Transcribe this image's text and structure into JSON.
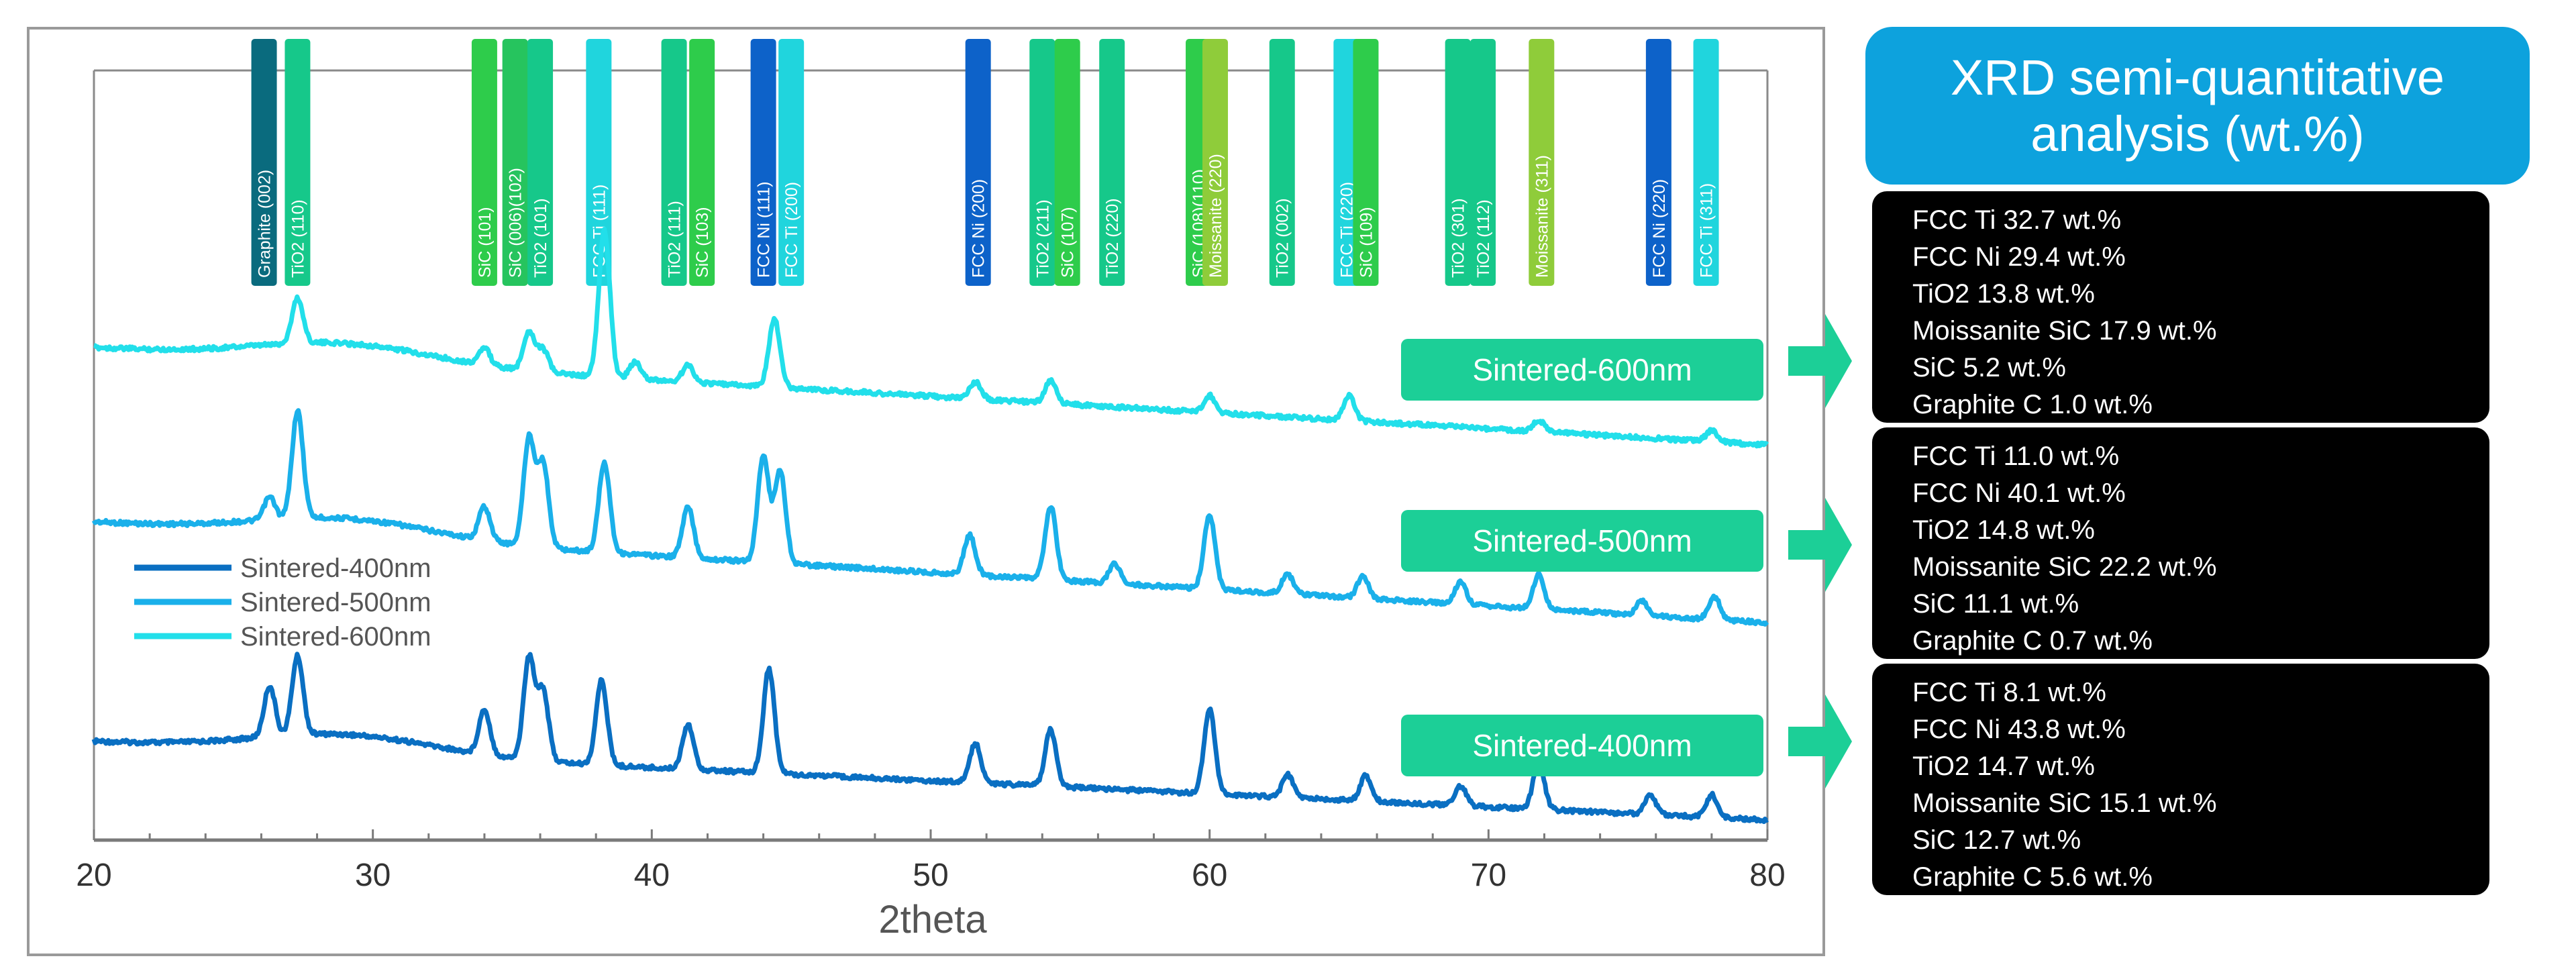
{
  "chart_data": {
    "type": "line",
    "title": "",
    "xlabel": "2theta",
    "ylabel": "",
    "xlim": [
      20,
      80
    ],
    "x_ticks": [
      "20",
      "30",
      "40",
      "50",
      "60",
      "70",
      "80"
    ],
    "grid": false,
    "legend_position": "left-middle",
    "series": [
      {
        "name": "Sintered-400nm",
        "color": "#0a6fc2",
        "offset": 0,
        "label": "Sintered-400nm",
        "peaks": [
          [
            26.3,
            0.18
          ],
          [
            27.3,
            0.28
          ],
          [
            34.0,
            0.16
          ],
          [
            35.6,
            0.36
          ],
          [
            36.1,
            0.25
          ],
          [
            38.2,
            0.3
          ],
          [
            41.3,
            0.16
          ],
          [
            44.2,
            0.37
          ],
          [
            51.6,
            0.14
          ],
          [
            54.3,
            0.2
          ],
          [
            60.0,
            0.3
          ],
          [
            62.8,
            0.08
          ],
          [
            65.6,
            0.09
          ],
          [
            69.0,
            0.07
          ],
          [
            71.8,
            0.17
          ],
          [
            75.8,
            0.07
          ],
          [
            78.0,
            0.08
          ]
        ]
      },
      {
        "name": "Sintered-500nm",
        "color": "#1ab0ea",
        "offset": 1,
        "label": "Sintered-500nm",
        "peaks": [
          [
            26.3,
            0.08
          ],
          [
            27.3,
            0.38
          ],
          [
            34.0,
            0.12
          ],
          [
            35.6,
            0.38
          ],
          [
            36.1,
            0.3
          ],
          [
            38.3,
            0.32
          ],
          [
            41.3,
            0.18
          ],
          [
            44.0,
            0.38
          ],
          [
            44.6,
            0.33
          ],
          [
            51.4,
            0.14
          ],
          [
            54.3,
            0.26
          ],
          [
            56.6,
            0.07
          ],
          [
            60.0,
            0.26
          ],
          [
            62.8,
            0.07
          ],
          [
            65.5,
            0.08
          ],
          [
            69.0,
            0.08
          ],
          [
            71.8,
            0.12
          ],
          [
            75.5,
            0.05
          ],
          [
            78.1,
            0.08
          ]
        ]
      },
      {
        "name": "Sintered-600nm",
        "color": "#22dfea",
        "offset": 2,
        "label": "Sintered-600nm",
        "peaks": [
          [
            27.3,
            0.16
          ],
          [
            34.0,
            0.06
          ],
          [
            35.6,
            0.14
          ],
          [
            36.1,
            0.08
          ],
          [
            38.3,
            0.52
          ],
          [
            39.4,
            0.06
          ],
          [
            41.3,
            0.06
          ],
          [
            44.4,
            0.24
          ],
          [
            51.6,
            0.06
          ],
          [
            54.3,
            0.08
          ],
          [
            60.0,
            0.06
          ],
          [
            65.0,
            0.09
          ],
          [
            71.8,
            0.04
          ],
          [
            78.0,
            0.04
          ]
        ]
      }
    ],
    "reference_markers": [
      {
        "label": "Graphite (002)",
        "x": 26.1,
        "color": "#0a6b7e"
      },
      {
        "label": "TiO2 (110)",
        "x": 27.3,
        "color": "#16c88a"
      },
      {
        "label": "SiC (101)",
        "x": 34.0,
        "color": "#2ecc4b"
      },
      {
        "label": "SiC (006)(102)",
        "x": 35.1,
        "color": "#26c45e"
      },
      {
        "label": "TiO2 (101)",
        "x": 36.0,
        "color": "#16c88a"
      },
      {
        "label": "FCC Ti (111)",
        "x": 38.1,
        "color": "#20d5dd"
      },
      {
        "label": "TiO2 (111)",
        "x": 40.8,
        "color": "#16c88a"
      },
      {
        "label": "SiC (103)",
        "x": 41.8,
        "color": "#2ecc4b"
      },
      {
        "label": "FCC Ni (111)",
        "x": 44.0,
        "color": "#0d62c9"
      },
      {
        "label": "FCC Ti (200)",
        "x": 45.0,
        "color": "#20d5dd"
      },
      {
        "label": "FCC Ni (200)",
        "x": 51.7,
        "color": "#0d62c9"
      },
      {
        "label": "TiO2 (211)",
        "x": 54.0,
        "color": "#16c88a"
      },
      {
        "label": "SiC (107)",
        "x": 54.9,
        "color": "#2ecc4b"
      },
      {
        "label": "TiO2 (220)",
        "x": 56.5,
        "color": "#16c88a"
      },
      {
        "label": "SiC (108)(110)",
        "x": 59.6,
        "color": "#2ecc4b"
      },
      {
        "label": "Moissanite (220)",
        "x": 60.2,
        "color": "#8fcc3a"
      },
      {
        "label": "TiO2 (002)",
        "x": 62.6,
        "color": "#16c88a"
      },
      {
        "label": "FCC Ti (220)",
        "x": 64.9,
        "color": "#20d5dd"
      },
      {
        "label": "SiC (109)",
        "x": 65.6,
        "color": "#2ecc4b"
      },
      {
        "label": "TiO2 (301)",
        "x": 68.9,
        "color": "#16c88a"
      },
      {
        "label": "TiO2 (112)",
        "x": 69.8,
        "color": "#16c88a"
      },
      {
        "label": "Moissanite (311)",
        "x": 71.9,
        "color": "#8fcc3a"
      },
      {
        "label": "FCC Ni (220)",
        "x": 76.1,
        "color": "#0d62c9"
      },
      {
        "label": "FCC Ti (311)",
        "x": 77.8,
        "color": "#20d5dd"
      }
    ],
    "curve_labels": [
      "Sintered-600nm",
      "Sintered-500nm",
      "Sintered-400nm"
    ],
    "curve_label_color": "#1ccf97"
  },
  "summary": {
    "title_line1": "XRD semi-quantitative",
    "title_line2": "analysis (wt.%)",
    "arrow_color": "#1ccf97",
    "boxes": [
      {
        "name": "Sintered-600nm",
        "lines": [
          "FCC Ti 32.7 wt.%",
          "FCC Ni 29.4 wt.%",
          "TiO2 13.8 wt.%",
          "Moissanite SiC 17.9 wt.%",
          "SiC 5.2 wt.%",
          "Graphite C 1.0 wt.%"
        ]
      },
      {
        "name": "Sintered-500nm",
        "lines": [
          "FCC Ti 11.0 wt.%",
          "FCC Ni 40.1 wt.%",
          "TiO2 14.8 wt.%",
          "Moissanite SiC 22.2 wt.%",
          "SiC 11.1 wt.%",
          "Graphite C 0.7 wt.%"
        ]
      },
      {
        "name": "Sintered-400nm",
        "lines": [
          "FCC Ti 8.1 wt.%",
          "FCC Ni 43.8 wt.%",
          "TiO2 14.7 wt.%",
          "Moissanite SiC 15.1 wt.%",
          "SiC 12.7 wt.%",
          "Graphite C 5.6 wt.%"
        ]
      }
    ]
  }
}
